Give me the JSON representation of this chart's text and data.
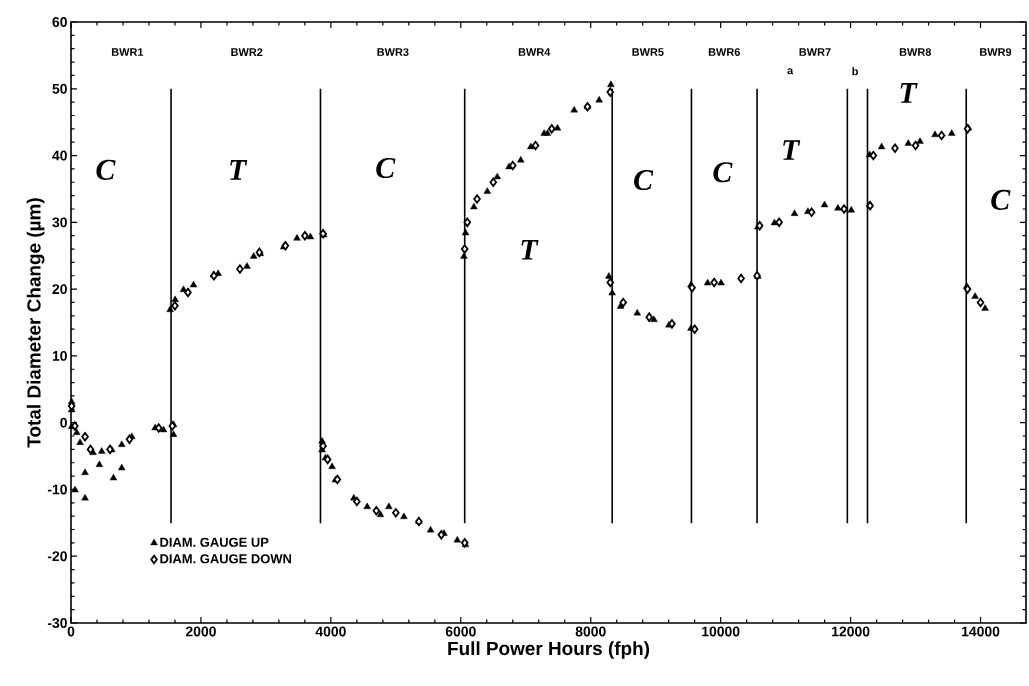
{
  "chart_data": {
    "type": "scatter",
    "xlabel": "Full Power Hours (fph)",
    "ylabel": "Total Diameter Change (µm)",
    "xlim": [
      0,
      14700
    ],
    "ylim": [
      -30,
      60
    ],
    "xticks": [
      0,
      2000,
      4000,
      6000,
      8000,
      10000,
      12000,
      14000
    ],
    "yticks": [
      -30,
      -20,
      -10,
      0,
      10,
      20,
      30,
      40,
      50,
      60
    ],
    "legend": "bottom left",
    "series": [
      {
        "name": "DIAM. GAUGE UP",
        "color": "#000000",
        "marker": "triangle",
        "x": [
          10,
          10,
          10,
          88,
          139,
          340,
          473,
          627,
          781,
          936,
          62,
          216,
          216,
          437,
          653,
          781,
          1295,
          1424,
          1578,
          1578,
          1526,
          1603,
          1732,
          1886,
          2194,
          2265,
          2709,
          2812,
          2915,
          3273,
          3479,
          3685,
          3890,
          3865,
          3865,
          3916,
          4019,
          4070,
          4353,
          4559,
          4764,
          4893,
          5124,
          5355,
          5535,
          5740,
          5946,
          6073,
          6048,
          6073,
          6202,
          6408,
          6562,
          6742,
          6923,
          7077,
          7283,
          7334,
          7488,
          7745,
          7950,
          8130,
          8310,
          8279,
          8330,
          8459,
          8716,
          8973,
          9204,
          9543,
          9543,
          9800,
          10006,
          10572,
          10572,
          10828,
          11137,
          11342,
          11599,
          11805,
          12010,
          12292,
          12292,
          12477,
          12888,
          13068,
          13299,
          13556,
          13813,
          13787,
          13916,
          14070
        ],
        "values": [
          3.1,
          1.9,
          -0.6,
          -1.5,
          -3.0,
          -4.5,
          -4.3,
          -4.1,
          -3.3,
          -2.1,
          -10.1,
          -11.3,
          -7.5,
          -6.3,
          -8.3,
          -6.8,
          -0.8,
          -1.1,
          -0.3,
          -1.8,
          16.9,
          18.4,
          19.9,
          20.6,
          22.1,
          22.3,
          23.4,
          24.9,
          25.3,
          26.3,
          27.6,
          27.8,
          28.1,
          -2.8,
          -4.1,
          -5.3,
          -6.6,
          -8.6,
          -11.3,
          -12.6,
          -13.8,
          -12.6,
          -14.1,
          -14.8,
          -16.1,
          -16.6,
          -17.6,
          -18.3,
          24.9,
          28.4,
          32.3,
          34.6,
          36.8,
          38.3,
          39.3,
          41.3,
          43.3,
          43.3,
          44.1,
          46.8,
          47.3,
          48.3,
          50.6,
          21.9,
          19.4,
          17.4,
          16.4,
          15.4,
          14.6,
          14.1,
          20.6,
          20.9,
          20.9,
          21.9,
          29.3,
          29.9,
          31.3,
          31.6,
          32.6,
          32.1,
          31.8,
          32.6,
          40.1,
          41.3,
          41.8,
          42.1,
          43.1,
          43.3,
          44.1,
          20.4,
          18.9,
          17.1
        ]
      },
      {
        "name": "DIAM. GAUGE DOWN",
        "color": "#000000",
        "marker": "diamond",
        "x": [
          10,
          60,
          216,
          300,
          600,
          900,
          1350,
          1560,
          1600,
          1800,
          2200,
          2600,
          2900,
          3300,
          3600,
          3880,
          3880,
          3950,
          4100,
          4400,
          4700,
          5000,
          5355,
          5700,
          6060,
          6060,
          6100,
          6250,
          6500,
          6800,
          7150,
          7400,
          7950,
          8300,
          8300,
          8500,
          8900,
          9250,
          9560,
          9600,
          9900,
          10314,
          10560,
          10600,
          10900,
          11400,
          11900,
          12300,
          12350,
          12683,
          13000,
          13400,
          13800,
          13800,
          14000
        ],
        "values": [
          2.5,
          -0.5,
          -2.1,
          -4.0,
          -4.0,
          -2.5,
          -0.8,
          -0.5,
          17.5,
          19.5,
          22.0,
          23.0,
          25.5,
          26.5,
          28.0,
          28.3,
          -3.5,
          -5.5,
          -8.5,
          -11.8,
          -13.2,
          -13.5,
          -14.8,
          -16.8,
          -18.0,
          26.0,
          30.0,
          33.5,
          36.0,
          38.5,
          41.5,
          44.0,
          47.3,
          49.5,
          21.0,
          18.0,
          15.8,
          14.8,
          20.2,
          14.0,
          21.0,
          21.6,
          22.0,
          29.5,
          30.0,
          31.5,
          32.0,
          32.5,
          40.0,
          41.1,
          41.5,
          43.0,
          44.0,
          20.0,
          18.0
        ]
      }
    ],
    "ref_lines": [
      {
        "axis": "x",
        "value": 1540
      },
      {
        "axis": "x",
        "value": 3840
      },
      {
        "axis": "x",
        "value": 6060
      },
      {
        "axis": "x",
        "value": 8330
      },
      {
        "axis": "x",
        "value": 9550
      },
      {
        "axis": "x",
        "value": 10560
      },
      {
        "axis": "x",
        "value": 11950
      },
      {
        "axis": "x",
        "value": 12260
      },
      {
        "axis": "x",
        "value": 13780
      }
    ],
    "annotations": [
      "BWR1",
      "BWR2",
      "BWR3",
      "BWR4",
      "BWR5",
      "BWR6",
      "BWR7",
      "BWR8",
      "BWR9",
      "a",
      "b",
      "C",
      "T",
      "C",
      "T",
      "C",
      "C",
      "T",
      "T",
      "C"
    ]
  }
}
